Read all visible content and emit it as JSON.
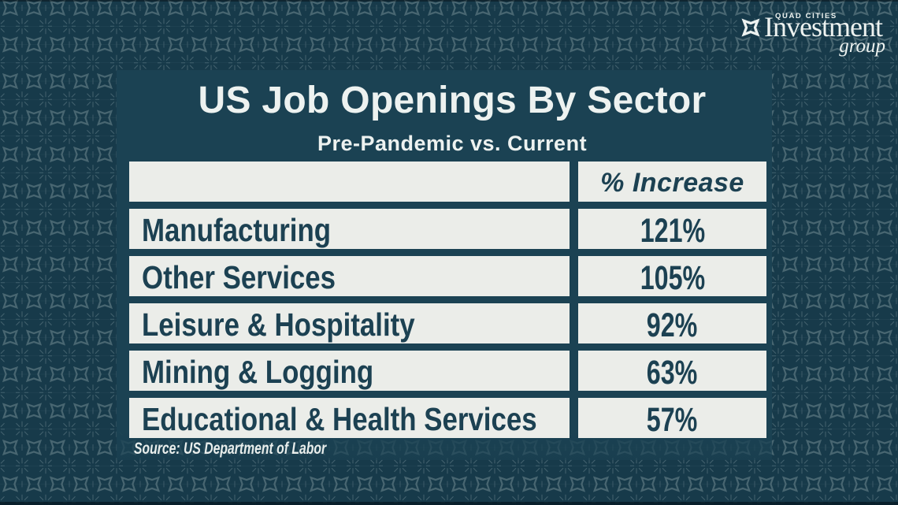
{
  "brand": {
    "name_top": "QUAD CITIES",
    "name_main": "Investment",
    "name_sub": "group"
  },
  "chart_data": {
    "type": "table",
    "title": "US Job Openings By Sector",
    "subtitle": "Pre-Pandemic vs. Current",
    "columns": [
      "",
      "% Increase"
    ],
    "rows": [
      {
        "label": "Manufacturing",
        "value": "121%"
      },
      {
        "label": "Other Services",
        "value": "105%"
      },
      {
        "label": "Leisure & Hospitality",
        "value": "92%"
      },
      {
        "label": "Mining & Logging",
        "value": "63%"
      },
      {
        "label": "Educational & Health Services",
        "value": "57%"
      }
    ],
    "source": "Source: US Department of Labor"
  },
  "colors": {
    "background": "#173a4a",
    "pattern_star": "#486671",
    "panel": "#1b4253",
    "cell_background": "#ebede9",
    "dark_text": "#1c4152",
    "light_text": "#edf2f0"
  }
}
